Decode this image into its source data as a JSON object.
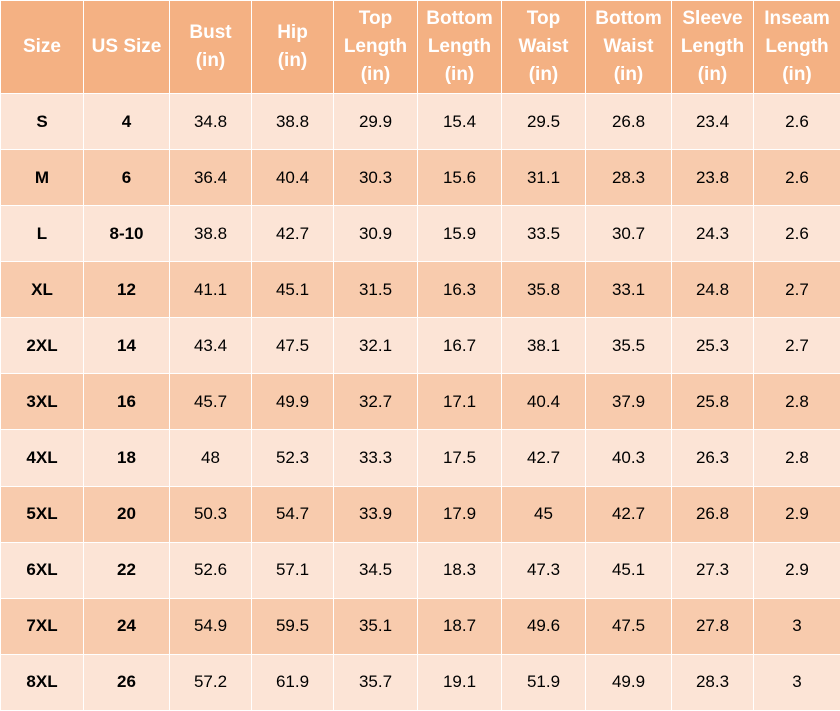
{
  "table": {
    "headers": [
      {
        "label": "Size",
        "unit": ""
      },
      {
        "label": "US Size",
        "unit": ""
      },
      {
        "label": "Bust",
        "unit": "(in)"
      },
      {
        "label": "Hip",
        "unit": "(in)"
      },
      {
        "label": "Top Length",
        "unit": "(in)"
      },
      {
        "label": "Bottom Length",
        "unit": "(in)"
      },
      {
        "label": "Top Waist",
        "unit": "(in)"
      },
      {
        "label": "Bottom Waist",
        "unit": "(in)"
      },
      {
        "label": "Sleeve Length",
        "unit": "(in)"
      },
      {
        "label": "Inseam Length",
        "unit": "(in)"
      }
    ],
    "rows": [
      [
        "S",
        "4",
        "34.8",
        "38.8",
        "29.9",
        "15.4",
        "29.5",
        "26.8",
        "23.4",
        "2.6"
      ],
      [
        "M",
        "6",
        "36.4",
        "40.4",
        "30.3",
        "15.6",
        "31.1",
        "28.3",
        "23.8",
        "2.6"
      ],
      [
        "L",
        "8-10",
        "38.8",
        "42.7",
        "30.9",
        "15.9",
        "33.5",
        "30.7",
        "24.3",
        "2.6"
      ],
      [
        "XL",
        "12",
        "41.1",
        "45.1",
        "31.5",
        "16.3",
        "35.8",
        "33.1",
        "24.8",
        "2.7"
      ],
      [
        "2XL",
        "14",
        "43.4",
        "47.5",
        "32.1",
        "16.7",
        "38.1",
        "35.5",
        "25.3",
        "2.7"
      ],
      [
        "3XL",
        "16",
        "45.7",
        "49.9",
        "32.7",
        "17.1",
        "40.4",
        "37.9",
        "25.8",
        "2.8"
      ],
      [
        "4XL",
        "18",
        "48",
        "52.3",
        "33.3",
        "17.5",
        "42.7",
        "40.3",
        "26.3",
        "2.8"
      ],
      [
        "5XL",
        "20",
        "50.3",
        "54.7",
        "33.9",
        "17.9",
        "45",
        "42.7",
        "26.8",
        "2.9"
      ],
      [
        "6XL",
        "22",
        "52.6",
        "57.1",
        "34.5",
        "18.3",
        "47.3",
        "45.1",
        "27.3",
        "2.9"
      ],
      [
        "7XL",
        "24",
        "54.9",
        "59.5",
        "35.1",
        "18.7",
        "49.6",
        "47.5",
        "27.8",
        "3"
      ],
      [
        "8XL",
        "26",
        "57.2",
        "61.9",
        "35.7",
        "19.1",
        "51.9",
        "49.9",
        "28.3",
        "3"
      ]
    ]
  },
  "colors": {
    "header_bg": "#f4b183",
    "header_text": "#ffffff",
    "row_light": "#fce4d6",
    "row_dark": "#f8cbad",
    "cell_text": "#000000"
  }
}
